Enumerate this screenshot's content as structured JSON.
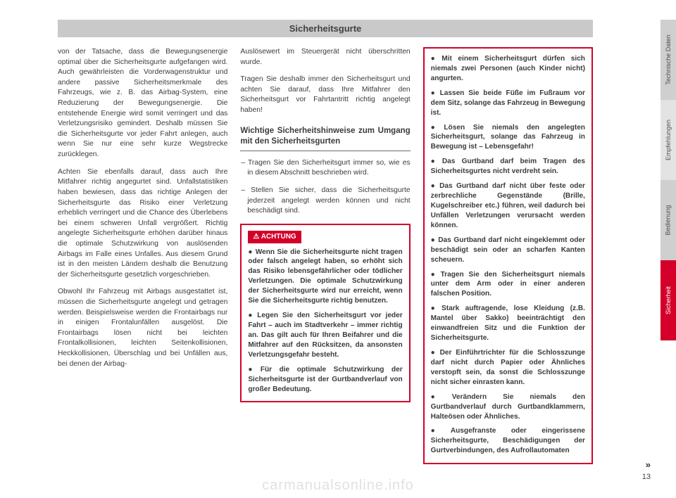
{
  "header": {
    "title": "Sicherheitsgurte"
  },
  "page_number": "13",
  "continue_marker": "»",
  "watermark": "carmanualsonline.info",
  "col1": {
    "p1": "von der Tatsache, dass die Bewegungsenergie optimal über die Sicherheitsgurte aufgefangen wird. Auch gewährleisten die Vorderwagenstruktur und andere passive Sicherheitsmerkmale des Fahrzeugs, wie z. B. das Airbag-System, eine Reduzierung der Bewegungsenergie. Die entstehende Energie wird somit verringert und das Verletzungsrisiko gemindert. Deshalb müssen Sie die Sicherheitsgurte vor jeder Fahrt anlegen, auch wenn Sie nur eine sehr kurze Wegstrecke zurücklegen.",
    "p2": "Achten Sie ebenfalls darauf, dass auch Ihre Mitfahrer richtig angegurtet sind. Unfallstatistiken haben bewiesen, dass das richtige Anlegen der Sicherheitsgurte das Risiko einer Verletzung erheblich verringert und die Chance des Überlebens bei einem schweren Unfall vergrößert. Richtig angelegte Sicherheitsgurte erhöhen darüber hinaus die optimale Schutzwirkung von auslösenden Airbags im Falle eines Unfalles. Aus diesem Grund ist in den meisten Ländern deshalb die Benutzung der Sicherheitsgurte gesetzlich vorgeschrieben.",
    "p3": "Obwohl Ihr Fahrzeug mit Airbags ausgestattet ist, müssen die Sicherheitsgurte angelegt und getragen werden. Beispielsweise werden die Frontairbags nur in einigen Frontalunfällen ausgelöst. Die Frontairbags lösen nicht bei leichten Frontalkollisionen, leichten Seitenkollisionen, Heckkollisionen, Überschlag und bei Unfällen aus, bei denen der Airbag-"
  },
  "col2": {
    "p1": "Auslösewert im Steuergerät nicht überschritten wurde.",
    "p2": "Tragen Sie deshalb immer den Sicherheitsgurt und achten Sie darauf, dass Ihre Mitfahrer den Sicherheitsgurt vor Fahrtantritt richtig angelegt haben!",
    "subhead": "Wichtige Sicherheitshinweise zum Umgang mit den Sicherheitsgurten",
    "d1": "– Tragen Sie den Sicherheitsgurt immer so, wie es in diesem Abschnitt beschrieben wird.",
    "d2": "– Stellen Sie sicher, dass die Sicherheitsgurte jederzeit angelegt werden können und nicht beschädigt sind.",
    "warn_label": "ACHTUNG",
    "w1": "Wenn Sie die Sicherheitsgurte nicht tragen oder falsch angelegt haben, so erhöht sich das Risiko lebensgefährlicher oder tödlicher Verletzungen. Die optimale Schutzwirkung der Sicherheitsgurte wird nur erreicht, wenn Sie die Sicherheitsgurte richtig benutzen.",
    "w2": "Legen Sie den Sicherheitsgurt vor jeder Fahrt – auch im Stadtverkehr – immer richtig an. Das gilt auch für Ihren Beifahrer und die Mitfahrer auf den Rücksitzen, da ansonsten Verletzungsgefahr besteht.",
    "w3": "Für die optimale Schutzwirkung der Sicherheitsgurte ist der Gurtbandverlauf von großer Bedeutung."
  },
  "col3": {
    "w1": "Mit einem Sicherheitsgurt dürfen sich niemals zwei Personen (auch Kinder nicht) angurten.",
    "w2": "Lassen Sie beide Füße im Fußraum vor dem Sitz, solange das Fahrzeug in Bewegung ist.",
    "w3": "Lösen Sie niemals den angelegten Sicherheitsgurt, solange das Fahrzeug in Bewegung ist – Lebensgefahr!",
    "w4": "Das Gurtband darf beim Tragen des Sicherheitsgurtes nicht verdreht sein.",
    "w5": "Das Gurtband darf nicht über feste oder zerbrechliche Gegenstände (Brille, Kugelschreiber etc.) führen, weil dadurch bei Unfällen Verletzungen verursacht werden können.",
    "w6": "Das Gurtband darf nicht eingeklemmt oder beschädigt sein oder an scharfen Kanten scheuern.",
    "w7": "Tragen Sie den Sicherheitsgurt niemals unter dem Arm oder in einer anderen falschen Position.",
    "w8": "Stark auftragende, lose Kleidung (z.B. Mantel über Sakko) beeinträchtigt den einwandfreien Sitz und die Funktion der Sicherheitsgurte.",
    "w9": "Der Einführtrichter für die Schlosszunge darf nicht durch Papier oder Ähnliches verstopft sein, da sonst die Schlosszunge nicht sicher einrasten kann.",
    "w10": "Verändern Sie niemals den Gurtbandverlauf durch Gurtbandklammern, Halteösen oder Ähnliches.",
    "w11": "Ausgefranste oder eingerissene Sicherheitsgurte, Beschädigungen der Gurtverbindungen, des Aufrollautomaten"
  },
  "tabs": {
    "t1": "Technische Daten",
    "t2": "Empfehlungen",
    "t3": "Bedienung",
    "t4": "Sicherheit"
  }
}
